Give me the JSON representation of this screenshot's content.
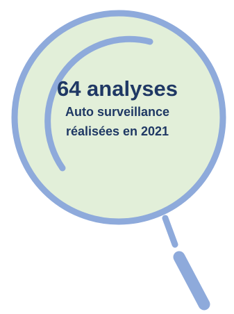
{
  "stat": {
    "headline": "64 analyses",
    "caption_line1": "Auto surveillance",
    "caption_line2": "réalisées en 2021"
  },
  "icon": {
    "name": "magnifying-glass-icon"
  },
  "colors": {
    "lens_fill": "#e2efd9",
    "lens_ring": "#8eaadb",
    "handle": "#8eaadb",
    "text": "#1f3864"
  }
}
